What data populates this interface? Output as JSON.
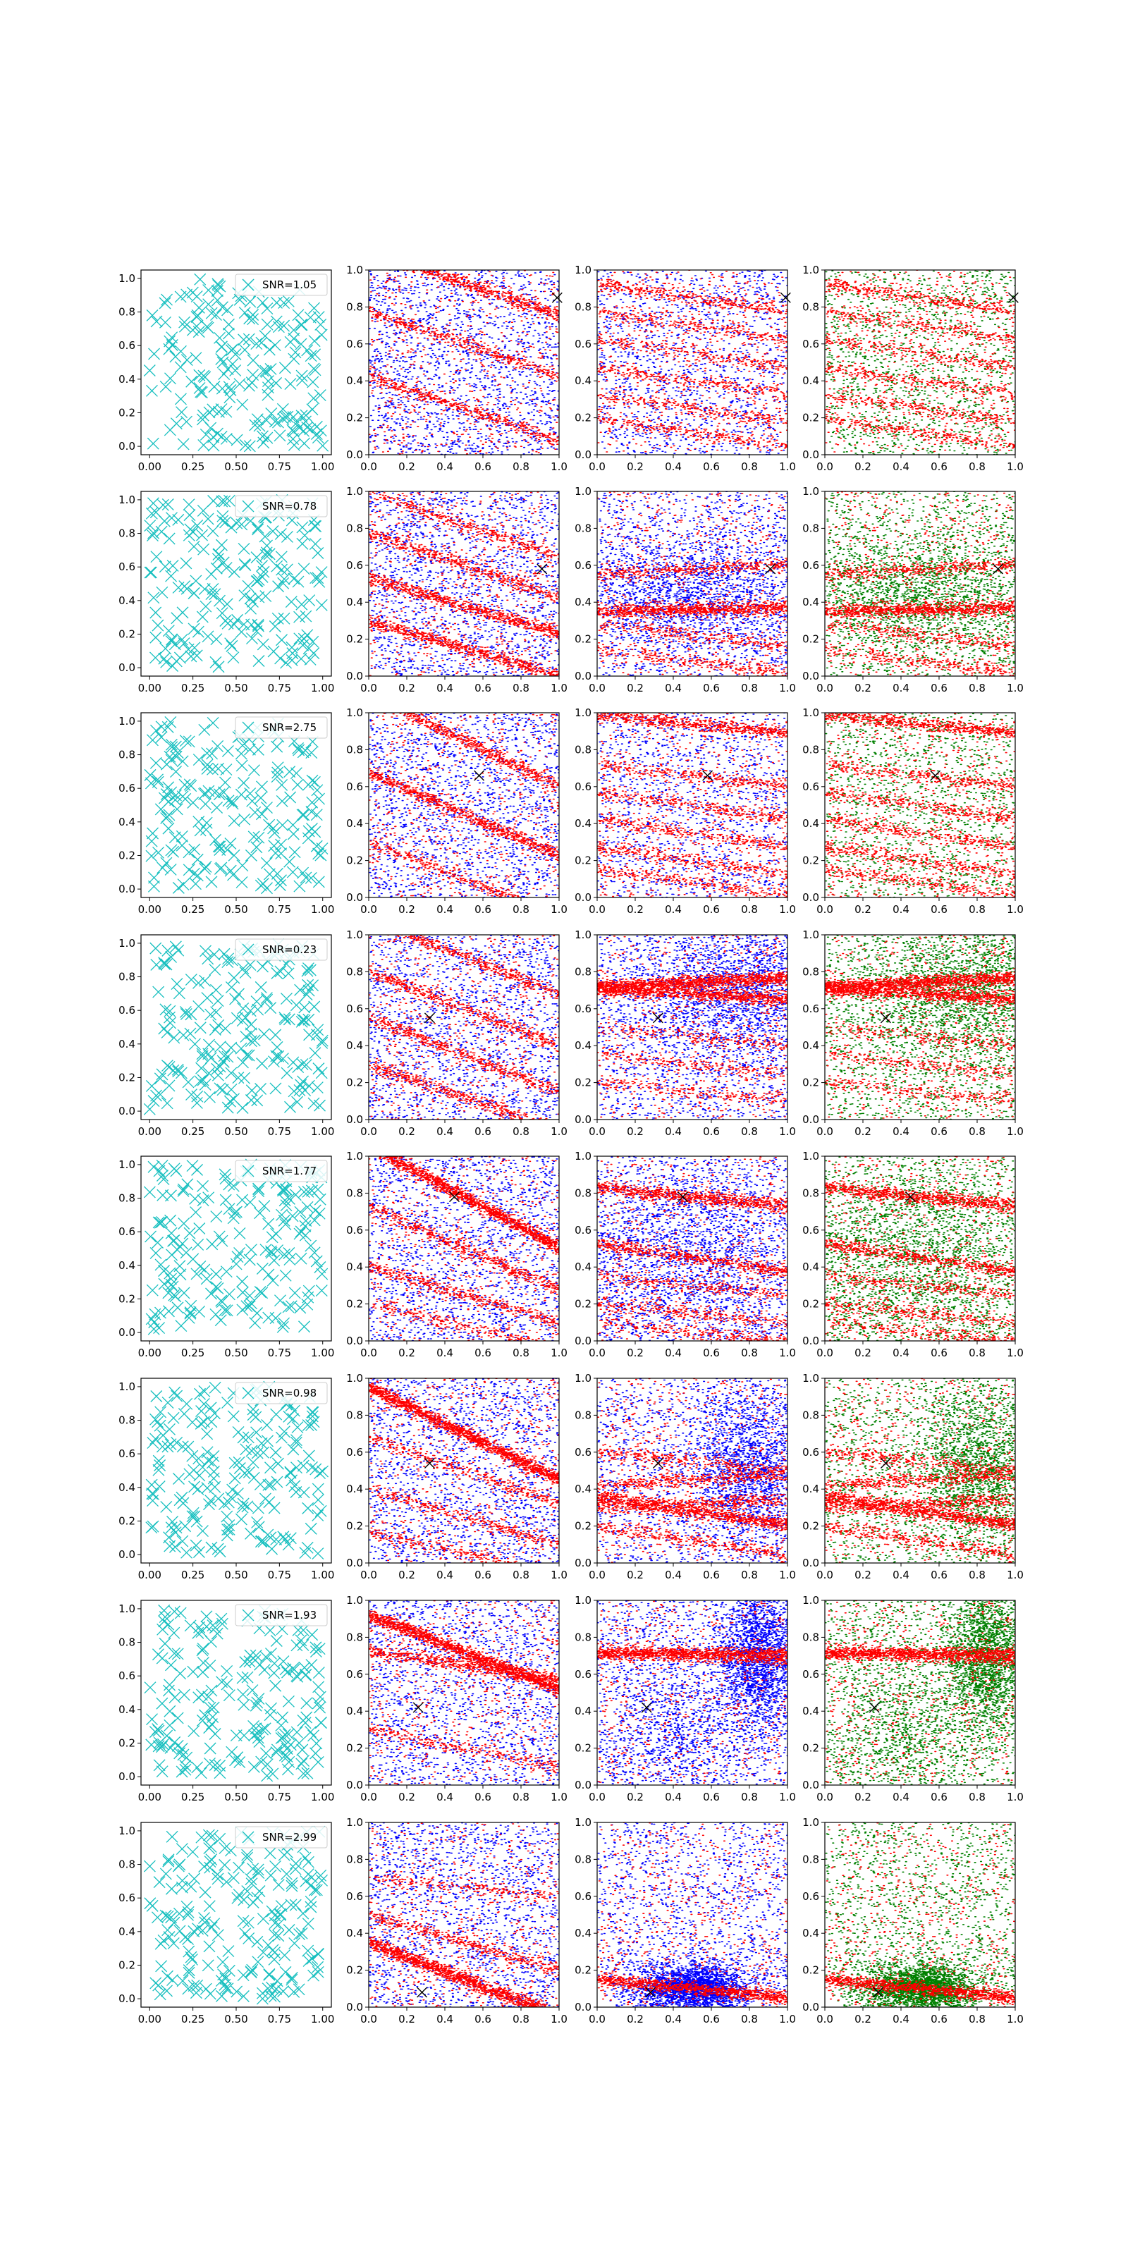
{
  "figure": {
    "rows": 8,
    "columns": 4,
    "marker_colors": {
      "scatter_x": "#17bfbf",
      "red": "#ff0000",
      "blue": "#0000ff",
      "green": "#008000",
      "target_x": "#000000"
    }
  },
  "tick_labels": {
    "col0_x": [
      "0.00",
      "0.25",
      "0.50",
      "0.75",
      "1.00"
    ],
    "col0_y": [
      "0.0",
      "0.2",
      "0.4",
      "0.6",
      "0.8",
      "1.0"
    ],
    "other_x": [
      "0.0",
      "0.2",
      "0.4",
      "0.6",
      "0.8",
      "1.0"
    ],
    "other_y": [
      "0.0",
      "0.2",
      "0.4",
      "0.6",
      "0.8",
      "1.0"
    ]
  },
  "chart_data": [
    {
      "type": "scatter",
      "row": 1,
      "legend": "SNR=1.05",
      "target": [
        0.99,
        0.85
      ],
      "xlim": [
        0,
        1
      ],
      "ylim": [
        0,
        1
      ],
      "grid": false,
      "legend_position": "top-right",
      "panel2_bands": [
        {
          "c": 0.93,
          "s": -0.35,
          "k": 700
        },
        {
          "c": 0.6,
          "s": -0.35,
          "k": 400
        },
        {
          "c": 0.25,
          "s": -0.35,
          "k": 450
        }
      ],
      "panel3_bands": [
        {
          "c": 0.85,
          "s": -0.15,
          "k": 350
        },
        {
          "c": 0.7,
          "s": -0.15,
          "k": 250
        },
        {
          "c": 0.55,
          "s": -0.15,
          "k": 250
        },
        {
          "c": 0.4,
          "s": -0.15,
          "k": 250
        },
        {
          "c": 0.25,
          "s": -0.15,
          "k": 250
        },
        {
          "c": 0.12,
          "s": -0.15,
          "k": 250
        }
      ],
      "blue_clusters": []
    },
    {
      "type": "scatter",
      "row": 2,
      "legend": "SNR=0.78",
      "target": [
        0.91,
        0.58
      ],
      "xlim": [
        0,
        1
      ],
      "ylim": [
        0,
        1
      ],
      "grid": false,
      "legend_position": "top-right",
      "panel2_bands": [
        {
          "c": 0.82,
          "s": -0.35,
          "k": 350
        },
        {
          "c": 0.6,
          "s": -0.35,
          "k": 450
        },
        {
          "c": 0.38,
          "s": -0.3,
          "k": 700
        },
        {
          "c": 0.15,
          "s": -0.3,
          "k": 700
        }
      ],
      "panel3_bands": [
        {
          "c": 0.36,
          "s": 0.02,
          "k": 900
        },
        {
          "c": 0.58,
          "s": 0.05,
          "k": 350
        },
        {
          "c": 0.22,
          "s": -0.12,
          "k": 250
        },
        {
          "c": 0.08,
          "s": -0.12,
          "k": 250
        }
      ],
      "blue_clusters": [
        {
          "cx": 0.5,
          "cy": 0.45,
          "sx": 0.3,
          "sy": 0.15,
          "k": 1400
        }
      ]
    },
    {
      "type": "scatter",
      "row": 3,
      "legend": "SNR=2.75",
      "target": [
        0.58,
        0.66
      ],
      "xlim": [
        0,
        1
      ],
      "ylim": [
        0,
        1
      ],
      "grid": false,
      "legend_position": "top-right",
      "panel2_bands": [
        {
          "c": 0.85,
          "s": -0.5,
          "k": 650
        },
        {
          "c": 0.45,
          "s": -0.45,
          "k": 700
        },
        {
          "c": 0.1,
          "s": -0.4,
          "k": 350
        }
      ],
      "panel3_bands": [
        {
          "c": 0.94,
          "s": -0.1,
          "k": 600
        },
        {
          "c": 0.66,
          "s": -0.12,
          "k": 300
        },
        {
          "c": 0.5,
          "s": -0.15,
          "k": 300
        },
        {
          "c": 0.35,
          "s": -0.15,
          "k": 300
        },
        {
          "c": 0.2,
          "s": -0.15,
          "k": 300
        },
        {
          "c": 0.08,
          "s": -0.15,
          "k": 250
        }
      ],
      "blue_clusters": []
    },
    {
      "type": "scatter",
      "row": 4,
      "legend": "SNR=0.23",
      "target": [
        0.32,
        0.55
      ],
      "xlim": [
        0,
        1
      ],
      "ylim": [
        0,
        1
      ],
      "grid": false,
      "legend_position": "top-right",
      "panel2_bands": [
        {
          "c": 0.88,
          "s": -0.4,
          "k": 450
        },
        {
          "c": 0.6,
          "s": -0.4,
          "k": 450
        },
        {
          "c": 0.35,
          "s": -0.4,
          "k": 450
        },
        {
          "c": 0.12,
          "s": -0.35,
          "k": 450
        }
      ],
      "panel3_bands": [
        {
          "c": 0.74,
          "s": 0.05,
          "k": 1200
        },
        {
          "c": 0.68,
          "s": -0.05,
          "k": 900
        },
        {
          "c": 0.45,
          "s": -0.1,
          "k": 200
        },
        {
          "c": 0.3,
          "s": -0.1,
          "k": 200
        },
        {
          "c": 0.15,
          "s": -0.1,
          "k": 200
        }
      ],
      "blue_clusters": [
        {
          "cx": 0.75,
          "cy": 0.7,
          "sx": 0.3,
          "sy": 0.2,
          "k": 1800
        }
      ]
    },
    {
      "type": "scatter",
      "row": 5,
      "legend": "SNR=1.77",
      "target": [
        0.45,
        0.78
      ],
      "xlim": [
        0,
        1
      ],
      "ylim": [
        0,
        1
      ],
      "grid": false,
      "legend_position": "top-right",
      "panel2_bands": [
        {
          "c": 0.78,
          "s": -0.55,
          "k": 1400
        },
        {
          "c": 0.5,
          "s": -0.45,
          "k": 450
        },
        {
          "c": 0.25,
          "s": -0.3,
          "k": 400
        },
        {
          "c": 0.08,
          "s": -0.25,
          "k": 250
        }
      ],
      "panel3_bands": [
        {
          "c": 0.78,
          "s": -0.1,
          "k": 800
        },
        {
          "c": 0.45,
          "s": -0.15,
          "k": 500
        },
        {
          "c": 0.3,
          "s": -0.1,
          "k": 250
        },
        {
          "c": 0.15,
          "s": -0.1,
          "k": 250
        },
        {
          "c": 0.05,
          "s": -0.1,
          "k": 250
        }
      ],
      "blue_clusters": [
        {
          "cx": 0.5,
          "cy": 0.5,
          "sx": 0.3,
          "sy": 0.25,
          "k": 1500
        }
      ]
    },
    {
      "type": "scatter",
      "row": 6,
      "legend": "SNR=0.98",
      "target": [
        0.32,
        0.54
      ],
      "xlim": [
        0,
        1
      ],
      "ylim": [
        0,
        1
      ],
      "grid": false,
      "legend_position": "top-right",
      "panel2_bands": [
        {
          "c": 0.7,
          "s": -0.5,
          "k": 1500
        },
        {
          "c": 0.5,
          "s": -0.35,
          "k": 300
        },
        {
          "c": 0.25,
          "s": -0.3,
          "k": 300
        },
        {
          "c": 0.05,
          "s": -0.25,
          "k": 250
        }
      ],
      "panel3_bands": [
        {
          "c": 0.28,
          "s": -0.15,
          "k": 900
        },
        {
          "c": 0.32,
          "s": 0.05,
          "k": 400
        },
        {
          "c": 0.55,
          "s": -0.1,
          "k": 300
        },
        {
          "c": 0.45,
          "s": 0.05,
          "k": 400
        },
        {
          "c": 0.12,
          "s": -0.15,
          "k": 300
        }
      ],
      "blue_clusters": [
        {
          "cx": 0.8,
          "cy": 0.5,
          "sx": 0.15,
          "sy": 0.2,
          "k": 1500
        }
      ]
    },
    {
      "type": "scatter",
      "row": 7,
      "legend": "SNR=1.93",
      "target": [
        0.26,
        0.42
      ],
      "xlim": [
        0,
        1
      ],
      "ylim": [
        0,
        1
      ],
      "grid": false,
      "legend_position": "top-right",
      "panel2_bands": [
        {
          "c": 0.65,
          "s": -0.15,
          "k": 600
        },
        {
          "c": 0.72,
          "s": -0.4,
          "k": 1400
        },
        {
          "c": 0.2,
          "s": -0.2,
          "k": 250
        }
      ],
      "panel3_bands": [
        {
          "c": 0.71,
          "s": 0.0,
          "k": 900
        },
        {
          "c": 0.7,
          "s": -0.05,
          "k": 400
        }
      ],
      "blue_clusters": [
        {
          "cx": 0.85,
          "cy": 0.7,
          "sx": 0.1,
          "sy": 0.2,
          "k": 2000
        },
        {
          "cx": 0.4,
          "cy": 0.3,
          "sx": 0.2,
          "sy": 0.25,
          "k": 800
        }
      ]
    },
    {
      "type": "scatter",
      "row": 8,
      "legend": "SNR=2.99",
      "target": [
        0.28,
        0.08
      ],
      "xlim": [
        0,
        1
      ],
      "ylim": [
        0,
        1
      ],
      "grid": false,
      "legend_position": "top-right",
      "panel2_bands": [
        {
          "c": 0.15,
          "s": -0.4,
          "k": 1400
        },
        {
          "c": 0.35,
          "s": -0.3,
          "k": 400
        },
        {
          "c": 0.65,
          "s": -0.1,
          "k": 200
        }
      ],
      "panel3_bands": [
        {
          "c": 0.1,
          "s": -0.1,
          "k": 1000
        }
      ],
      "blue_clusters": [
        {
          "cx": 0.5,
          "cy": 0.1,
          "sx": 0.15,
          "sy": 0.07,
          "k": 2500
        }
      ]
    }
  ]
}
